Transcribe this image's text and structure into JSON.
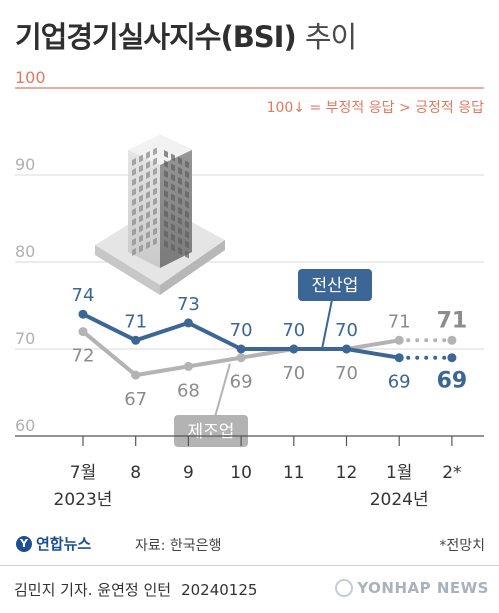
{
  "title": "기업경기실사지수(BSI)",
  "title_suffix": "추이",
  "note_reference": "100↓ = 부정적 응답 > 긍정적 응답",
  "source": "자료: 한국은행",
  "forecast_note": "*전망치",
  "logo_text": "연합뉴스",
  "credit": "김민지 기자. 윤연정 인턴",
  "credit_date": "20240125",
  "watermark": "YONHAP NEWS",
  "colors": {
    "manufacturing": "#b3b3b3",
    "non_manufacturing": "#3b6695",
    "reference_line": "#e07a5f",
    "grid": "#d9d9d9",
    "axis_text": "#b0b0b0"
  },
  "chart_data": {
    "type": "line",
    "x": [
      "7월",
      "8",
      "9",
      "10",
      "11",
      "12",
      "1월",
      "2*"
    ],
    "x_year_labels": [
      {
        "at": "7월",
        "label": "2023년"
      },
      {
        "at": "1월",
        "label": "2024년"
      }
    ],
    "ylim": [
      60,
      100
    ],
    "yticks": [
      60,
      70,
      80,
      90,
      100
    ],
    "reference_line": 100,
    "series": [
      {
        "name": "전산업",
        "values": [
          74,
          71,
          73,
          70,
          70,
          70,
          69,
          69
        ],
        "forecast_from_index": 6,
        "color": "#3b6695"
      },
      {
        "name": "제조업",
        "values": [
          72,
          67,
          68,
          69,
          70,
          70,
          71,
          71
        ],
        "forecast_from_index": 6,
        "color": "#b3b3b3"
      }
    ]
  }
}
